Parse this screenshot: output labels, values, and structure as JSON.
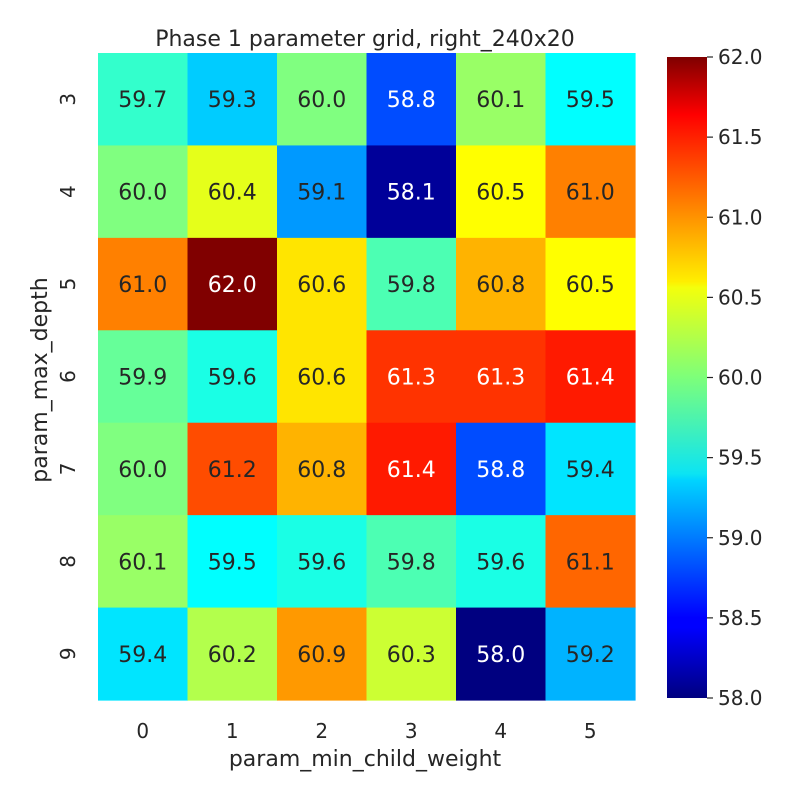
{
  "chart_data": {
    "type": "heatmap",
    "title": "Phase 1 parameter grid, right_240x20",
    "xlabel": "param_min_child_weight",
    "ylabel": "param_max_depth",
    "x": [
      "0",
      "1",
      "2",
      "3",
      "4",
      "5"
    ],
    "y": [
      "3",
      "4",
      "5",
      "6",
      "7",
      "8",
      "9"
    ],
    "values": [
      [
        59.7,
        59.3,
        60.0,
        58.8,
        60.1,
        59.5
      ],
      [
        60.0,
        60.4,
        59.1,
        58.1,
        60.5,
        61.0
      ],
      [
        61.0,
        62.0,
        60.6,
        59.8,
        60.8,
        60.5
      ],
      [
        59.9,
        59.6,
        60.6,
        61.3,
        61.3,
        61.4
      ],
      [
        60.0,
        61.2,
        60.8,
        61.4,
        58.8,
        59.4
      ],
      [
        60.1,
        59.5,
        59.6,
        59.8,
        59.6,
        61.1
      ],
      [
        59.4,
        60.2,
        60.9,
        60.3,
        58.0,
        59.2
      ]
    ],
    "colorbar": {
      "range": [
        58.0,
        62.0
      ],
      "ticks": [
        "58.0",
        "58.5",
        "59.0",
        "59.5",
        "60.0",
        "60.5",
        "61.0",
        "61.5",
        "62.0"
      ],
      "colormap": "jet",
      "position": "right"
    },
    "annotations": "cell values shown in each cell"
  }
}
